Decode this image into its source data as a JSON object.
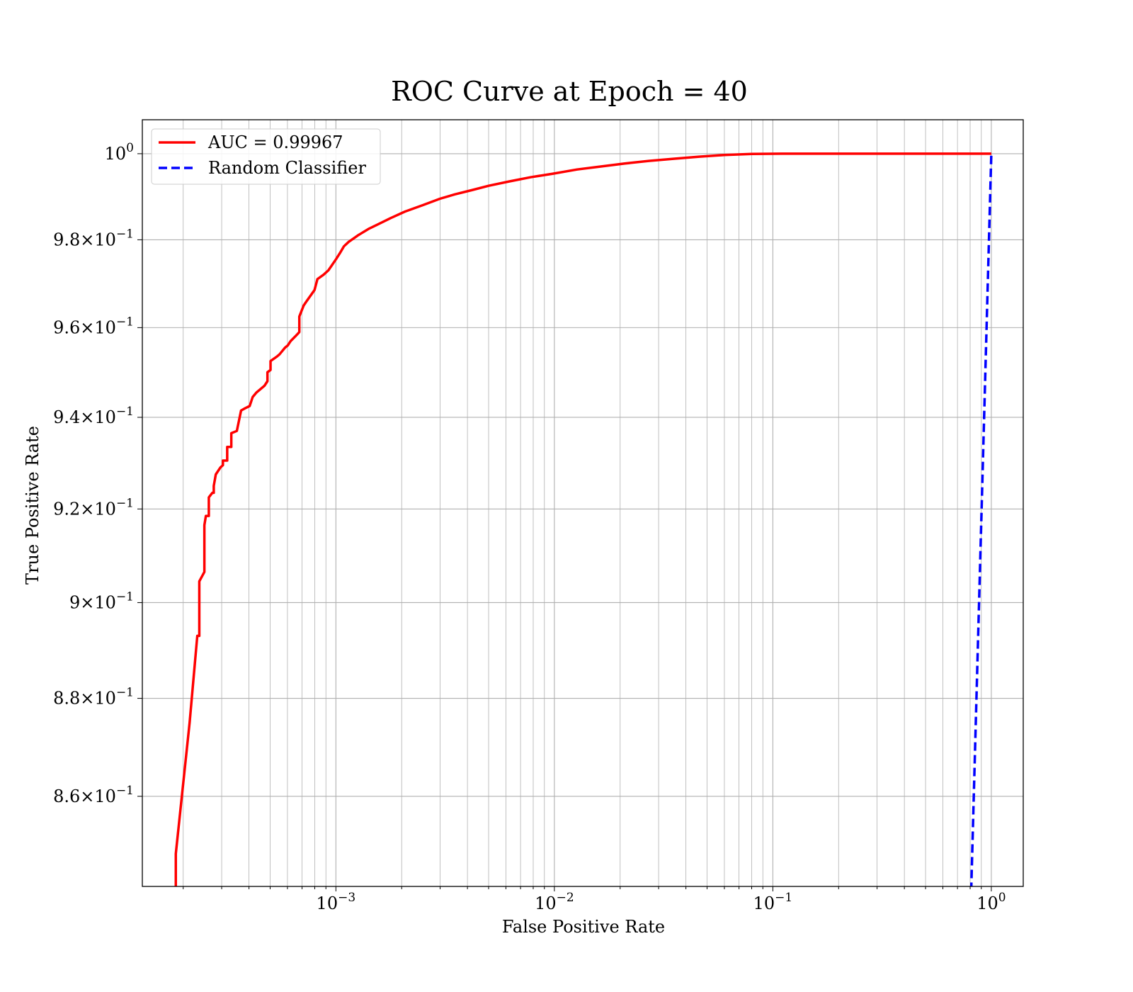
{
  "chart_data": {
    "type": "line",
    "title": "ROC Curve at Epoch = 40",
    "xlabel": "False Positive Rate",
    "ylabel": "True Positive Rate",
    "xscale": "log",
    "yscale": "log",
    "xlim": [
      0.00013,
      1.4
    ],
    "ylim": [
      0.842,
      1.008
    ],
    "grid": true,
    "grid_minor": true,
    "legend_position": "upper-left",
    "x_ticks": [
      {
        "value": 0.001,
        "base": "10",
        "exp": "−3"
      },
      {
        "value": 0.01,
        "base": "10",
        "exp": "−2"
      },
      {
        "value": 0.1,
        "base": "10",
        "exp": "−1"
      },
      {
        "value": 1,
        "base": "10",
        "exp": "0"
      }
    ],
    "y_ticks": [
      {
        "value": 0.86,
        "mant": "8.6",
        "base": "10",
        "exp": "−1"
      },
      {
        "value": 0.88,
        "mant": "8.8",
        "base": "10",
        "exp": "−1"
      },
      {
        "value": 0.9,
        "mant": "9",
        "base": "10",
        "exp": "−1"
      },
      {
        "value": 0.92,
        "mant": "9.2",
        "base": "10",
        "exp": "−1"
      },
      {
        "value": 0.94,
        "mant": "9.4",
        "base": "10",
        "exp": "−1"
      },
      {
        "value": 0.96,
        "mant": "9.6",
        "base": "10",
        "exp": "−1"
      },
      {
        "value": 0.98,
        "mant": "9.8",
        "base": "10",
        "exp": "−1"
      },
      {
        "value": 1.0,
        "mant": "",
        "base": "10",
        "exp": "0"
      }
    ],
    "series": [
      {
        "name": "AUC = 0.99967",
        "color": "#ff0000",
        "style": "solid",
        "x": [
          0.000185,
          0.000185,
          0.000214,
          0.000232,
          0.000237,
          0.000237,
          0.00025,
          0.00025,
          0.000254,
          0.000262,
          0.000262,
          0.000272,
          0.000276,
          0.000276,
          0.000282,
          0.000296,
          0.000304,
          0.000304,
          0.000318,
          0.000318,
          0.000332,
          0.000332,
          0.000352,
          0.000368,
          0.000384,
          0.000403,
          0.000416,
          0.000433,
          0.000458,
          0.000471,
          0.000486,
          0.000486,
          0.000502,
          0.000502,
          0.000537,
          0.000552,
          0.000585,
          0.000602,
          0.000621,
          0.000651,
          0.00068,
          0.00068,
          0.000712,
          0.000735,
          0.000798,
          0.000823,
          0.000878,
          0.000924,
          0.001,
          0.001045,
          0.001088,
          0.001143,
          0.00126,
          0.00141,
          0.00155,
          0.00178,
          0.00207,
          0.0025,
          0.003,
          0.0035,
          0.0042,
          0.005,
          0.0062,
          0.0078,
          0.0098,
          0.0127,
          0.0163,
          0.021,
          0.027,
          0.035,
          0.046,
          0.06,
          0.08,
          0.11,
          0.15,
          0.3,
          0.6,
          1.0
        ],
        "y": [
          0.841,
          0.8485,
          0.875,
          0.893,
          0.893,
          0.9045,
          0.9065,
          0.9165,
          0.9185,
          0.9185,
          0.9225,
          0.9235,
          0.9235,
          0.925,
          0.9275,
          0.929,
          0.9295,
          0.9305,
          0.9305,
          0.9335,
          0.9335,
          0.9365,
          0.937,
          0.9415,
          0.942,
          0.9425,
          0.9445,
          0.9455,
          0.9465,
          0.947,
          0.948,
          0.95,
          0.9505,
          0.9525,
          0.9535,
          0.954,
          0.9555,
          0.956,
          0.957,
          0.958,
          0.959,
          0.9625,
          0.965,
          0.966,
          0.9685,
          0.971,
          0.972,
          0.973,
          0.9755,
          0.977,
          0.9785,
          0.9795,
          0.981,
          0.9825,
          0.9835,
          0.985,
          0.9865,
          0.988,
          0.9895,
          0.9905,
          0.9915,
          0.9925,
          0.9935,
          0.9945,
          0.9953,
          0.9963,
          0.997,
          0.9977,
          0.9983,
          0.9988,
          0.9993,
          0.9997,
          0.99995,
          1.0,
          1.0,
          1.0,
          1.0,
          1.0
        ]
      },
      {
        "name": "Random Classifier",
        "color": "#0000ff",
        "style": "dashed",
        "x": [
          0.8,
          1.0
        ],
        "y": [
          0.8,
          1.0
        ]
      }
    ]
  }
}
